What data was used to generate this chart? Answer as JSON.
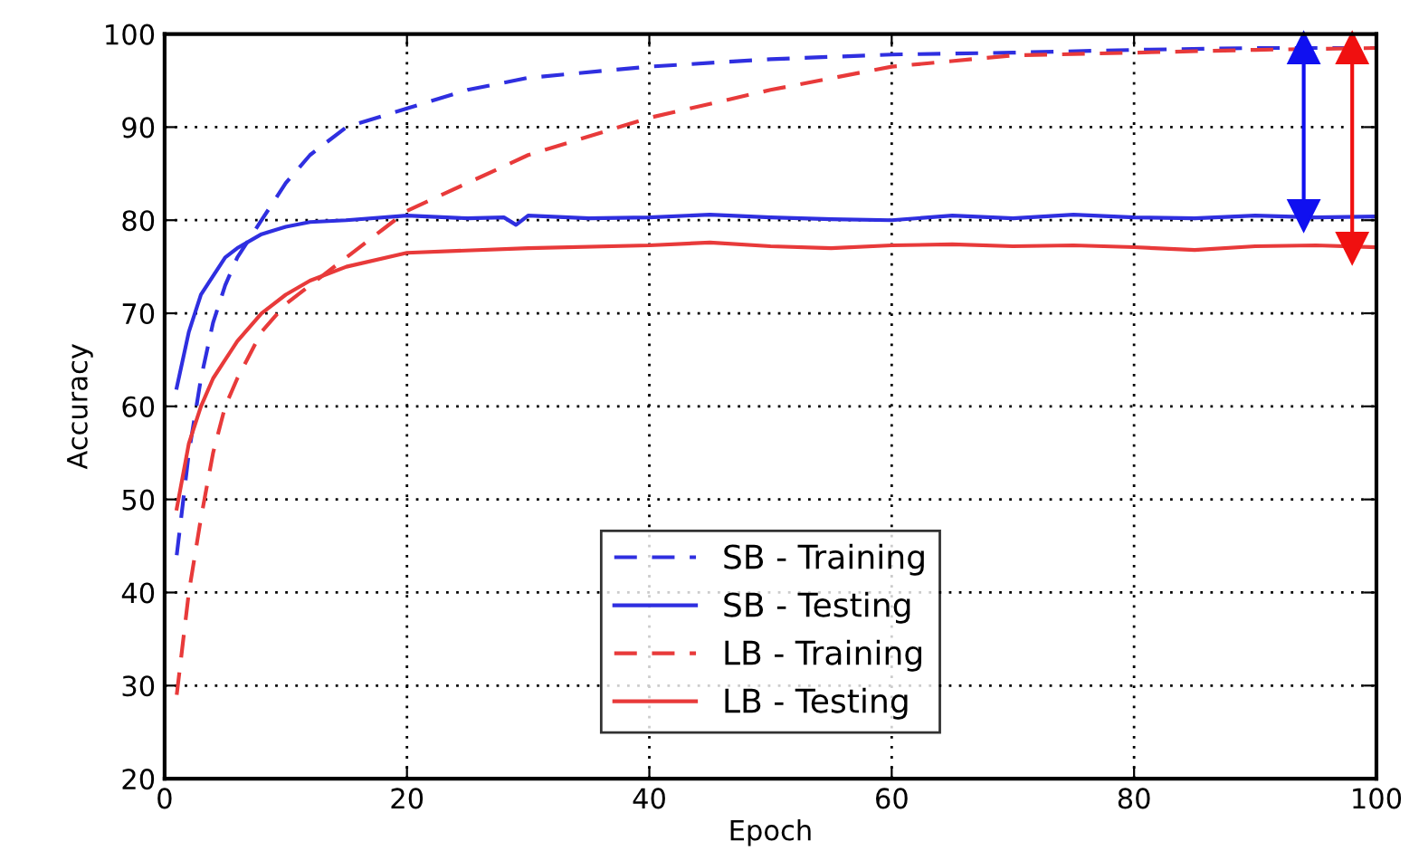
{
  "chart_data": {
    "type": "line",
    "xlabel": "Epoch",
    "ylabel": "Accuracy",
    "xlim": [
      0,
      100
    ],
    "ylim": [
      20,
      100
    ],
    "xticks": [
      0,
      20,
      40,
      60,
      80,
      100
    ],
    "yticks": [
      20,
      30,
      40,
      50,
      60,
      70,
      80,
      90,
      100
    ],
    "grid": true,
    "legend": "bottom",
    "tick_labels": "xy",
    "series": [
      {
        "name": "SB - Training",
        "color": "#2f2fe0",
        "line_style": "dashed",
        "x": [
          1,
          2,
          3,
          4,
          5,
          6,
          8,
          10,
          12,
          15,
          20,
          25,
          30,
          40,
          50,
          60,
          70,
          80,
          90,
          100
        ],
        "values": [
          44,
          55,
          63,
          69,
          73,
          76,
          80,
          84,
          87,
          90,
          92,
          94,
          95.3,
          96.5,
          97.3,
          97.8,
          98,
          98.3,
          98.5,
          98.5
        ]
      },
      {
        "name": "SB - Testing",
        "color": "#2f2fe0",
        "line_style": "solid",
        "x": [
          1,
          2,
          3,
          4,
          5,
          6,
          8,
          10,
          12,
          15,
          20,
          25,
          28,
          29,
          30,
          35,
          40,
          45,
          50,
          55,
          60,
          65,
          70,
          75,
          80,
          85,
          90,
          95,
          100
        ],
        "values": [
          62,
          68,
          72,
          74,
          76,
          77,
          78.5,
          79.3,
          79.8,
          80,
          80.5,
          80.2,
          80.3,
          79.5,
          80.5,
          80.2,
          80.3,
          80.6,
          80.3,
          80.1,
          80,
          80.5,
          80.2,
          80.6,
          80.3,
          80.2,
          80.5,
          80.3,
          80.4
        ]
      },
      {
        "name": "LB - Training",
        "color": "#e83a3a",
        "line_style": "dashed",
        "x": [
          1,
          2,
          3,
          4,
          5,
          6,
          8,
          10,
          12,
          15,
          18,
          20,
          25,
          30,
          40,
          50,
          60,
          70,
          80,
          90,
          100
        ],
        "values": [
          29,
          40,
          48,
          55,
          60,
          63,
          68,
          71,
          73,
          76,
          79,
          81,
          84,
          87,
          91,
          94,
          96.5,
          97.7,
          98,
          98.3,
          98.5
        ]
      },
      {
        "name": "LB - Testing",
        "color": "#e83a3a",
        "line_style": "solid",
        "x": [
          1,
          2,
          3,
          4,
          5,
          6,
          8,
          10,
          12,
          15,
          20,
          30,
          40,
          45,
          50,
          55,
          60,
          65,
          70,
          75,
          80,
          85,
          90,
          95,
          100
        ],
        "values": [
          49,
          56,
          60,
          63,
          65,
          67,
          70,
          72,
          73.5,
          75,
          76.5,
          77,
          77.3,
          77.6,
          77.2,
          77,
          77.3,
          77.4,
          77.2,
          77.3,
          77.1,
          76.8,
          77.2,
          77.3,
          77.1
        ]
      },
      {
        "type": "line",
        "color": "#1010f0",
        "line_style": "solid",
        "marker": "triangle",
        "x": [
          94,
          94
        ],
        "values": [
          80.5,
          98.5
        ]
      },
      {
        "type": "line",
        "color": "#f01010",
        "line_style": "solid",
        "marker": "triangle",
        "x": [
          98,
          98
        ],
        "values": [
          77,
          98.5
        ]
      }
    ]
  }
}
